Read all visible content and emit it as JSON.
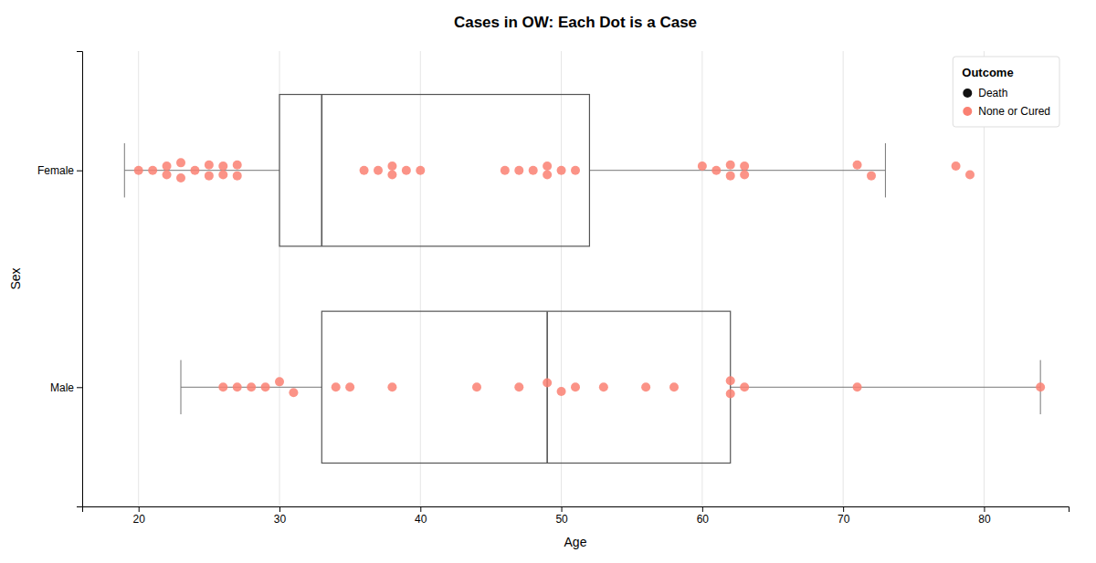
{
  "chart_data": {
    "type": "box",
    "orientation": "horizontal",
    "title": "Cases in OW: Each Dot is a Case",
    "x_label": "Age",
    "y_label": "Sex",
    "groups": [
      {
        "y": 2.0,
        "q1": 30,
        "median": 33,
        "q3": 52,
        "whisker_low": 19,
        "whisker_high": 73,
        "x": [
          20,
          21,
          22,
          22,
          23,
          23,
          24,
          25,
          25,
          26,
          26,
          27,
          27,
          36,
          37,
          38,
          38,
          39,
          40,
          46,
          47,
          48,
          49,
          49,
          50,
          51,
          60,
          61,
          62,
          62,
          63,
          63,
          71,
          72,
          78,
          79
        ],
        "jitter": [
          0.0,
          0.0,
          0.04,
          -0.04,
          0.07,
          -0.07,
          0.0,
          0.05,
          -0.05,
          0.04,
          -0.04,
          0.05,
          -0.05,
          0.0,
          0.0,
          0.04,
          -0.04,
          0.0,
          0.0,
          0.0,
          0.0,
          0.0,
          0.04,
          -0.04,
          0.0,
          0.0,
          0.04,
          0.0,
          0.05,
          -0.05,
          0.04,
          -0.04,
          0.05,
          -0.05,
          0.04,
          -0.04
        ]
      },
      {
        "y": 0.0,
        "q1": 33,
        "median": 49,
        "q3": 62,
        "whisker_low": 23,
        "whisker_high": 84,
        "x": [
          26,
          27,
          28,
          29,
          30,
          31,
          34,
          35,
          38,
          44,
          47,
          49,
          50,
          51,
          53,
          56,
          58,
          62,
          62,
          63,
          71,
          84
        ],
        "jitter": [
          0.0,
          0.0,
          0.0,
          0.0,
          0.05,
          -0.05,
          0.0,
          0.0,
          0.0,
          0.0,
          0.0,
          0.04,
          -0.04,
          0.0,
          0.0,
          0.0,
          0.0,
          0.06,
          -0.06,
          0.0,
          0.0,
          0.0
        ]
      }
    ],
    "xlim": [
      16,
      86
    ],
    "xticks": [
      20,
      30,
      40,
      50,
      60,
      70,
      80
    ],
    "ylim": [
      -1.1,
      3.1
    ],
    "yticks": [
      {
        "value": 0.0,
        "label": "Male"
      },
      {
        "value": 2.0,
        "label": "Female"
      }
    ],
    "grid": true,
    "legend": "upper right",
    "legend_title": "Outcome",
    "legend_entries": [
      {
        "name": "Death",
        "color": "#111111"
      },
      {
        "name": "None or Cured",
        "color": "#FA8072"
      }
    ]
  }
}
